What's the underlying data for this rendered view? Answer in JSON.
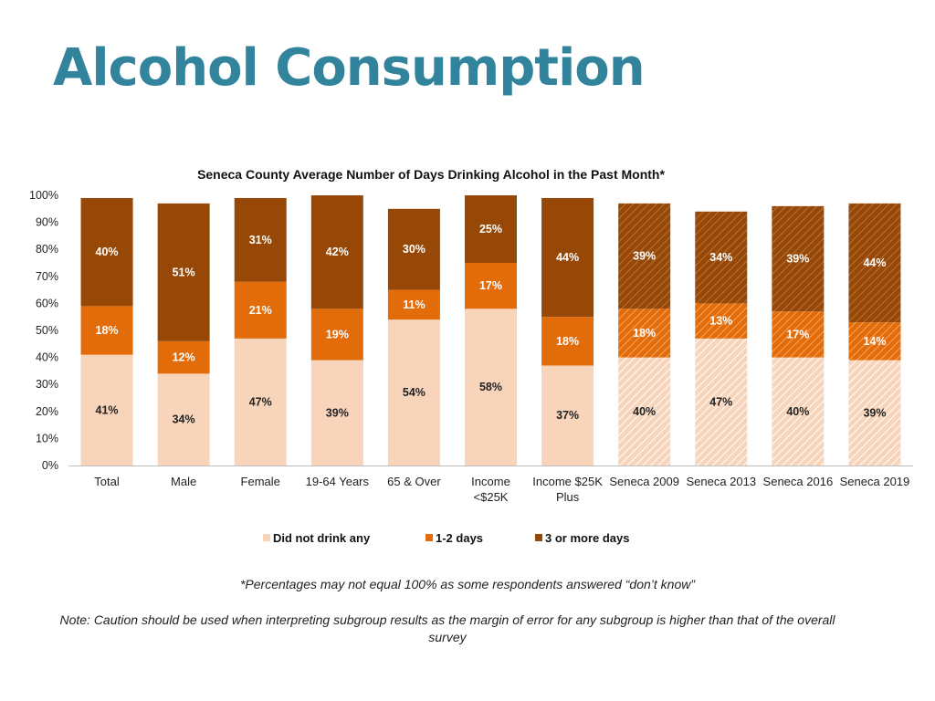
{
  "page": {
    "title": "Alcohol Consumption",
    "footnote": "*Percentages may not equal 100% as some respondents answered “don’t know”",
    "note": "Note: Caution should be used when interpreting subgroup results as the margin of error for any subgroup is higher than that of the overall survey"
  },
  "colors": {
    "title": "#31849b",
    "none": "#f8d4bb",
    "one_two": "#e36c0a",
    "three_plus": "#974806",
    "hatch": "#ffffff"
  },
  "chart_data": {
    "type": "bar",
    "stacked": true,
    "title": "Seneca County Average Number of Days Drinking Alcohol in the Past Month*",
    "xlabel": "",
    "ylabel": "",
    "ylim": [
      0,
      100
    ],
    "yticks": [
      "0%",
      "10%",
      "20%",
      "30%",
      "40%",
      "50%",
      "60%",
      "70%",
      "80%",
      "90%",
      "100%"
    ],
    "legend_position": "bottom",
    "categories": [
      [
        "Total"
      ],
      [
        "Male"
      ],
      [
        "Female"
      ],
      [
        "19-64 Years"
      ],
      [
        "65 & Over"
      ],
      [
        "Income",
        "<$25K"
      ],
      [
        "Income $25K",
        "Plus"
      ],
      [
        "Seneca 2009"
      ],
      [
        "Seneca 2013"
      ],
      [
        "Seneca 2016"
      ],
      [
        "Seneca 2019"
      ]
    ],
    "hatched": [
      false,
      false,
      false,
      false,
      false,
      false,
      false,
      true,
      true,
      true,
      true
    ],
    "series": [
      {
        "name": "Did not drink any",
        "values": [
          41,
          34,
          47,
          39,
          54,
          58,
          37,
          40,
          47,
          40,
          39
        ]
      },
      {
        "name": "1-2 days",
        "values": [
          18,
          12,
          21,
          19,
          11,
          17,
          18,
          18,
          13,
          17,
          14
        ]
      },
      {
        "name": "3 or more days",
        "values": [
          40,
          51,
          31,
          42,
          30,
          25,
          44,
          39,
          34,
          39,
          44
        ]
      }
    ]
  }
}
